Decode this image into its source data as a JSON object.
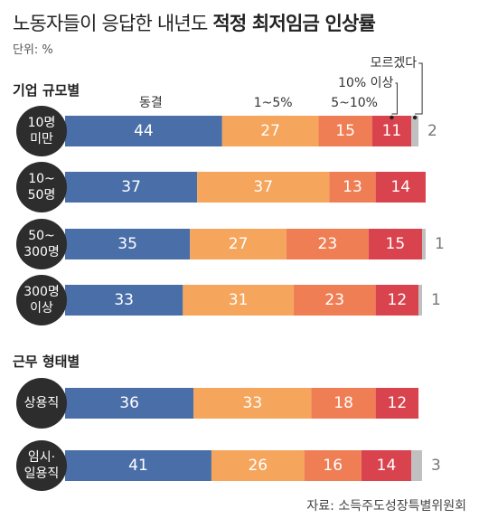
{
  "header": {
    "title_light": "노동자들이 응답한 내년도",
    "title_bold": "적정 최저임금 인상률",
    "unit": "단위: %"
  },
  "source": "자료: 소득주도성장특별위원회",
  "colors": {
    "freeze": "#4a6fa8",
    "one_to_five": "#f5a55c",
    "five_to_ten": "#f07e55",
    "over_ten": "#d9434e",
    "dont_know": "#c0c0c0",
    "pill": "#2d2d2d"
  },
  "chart_data": {
    "type": "bar",
    "stacked": true,
    "orientation": "horizontal",
    "unit": "%",
    "series": [
      {
        "name": "동결",
        "color_key": "freeze"
      },
      {
        "name": "1~5%",
        "color_key": "one_to_five"
      },
      {
        "name": "5~10%",
        "color_key": "five_to_ten"
      },
      {
        "name": "10% 이상",
        "color_key": "over_ten"
      },
      {
        "name": "모르겠다",
        "color_key": "dont_know"
      }
    ],
    "groups": [
      {
        "title": "기업 규모별",
        "rows": [
          {
            "label": [
              "10명",
              "미만"
            ],
            "values": [
              44,
              27,
              15,
              11,
              2
            ]
          },
          {
            "label": [
              "10~",
              "50명"
            ],
            "values": [
              37,
              37,
              13,
              14,
              0
            ]
          },
          {
            "label": [
              "50~",
              "300명"
            ],
            "values": [
              35,
              27,
              23,
              15,
              1
            ]
          },
          {
            "label": [
              "300명",
              "이상"
            ],
            "values": [
              33,
              31,
              23,
              12,
              1
            ]
          }
        ]
      },
      {
        "title": "근무 형태별",
        "rows": [
          {
            "label": [
              "상용직"
            ],
            "values": [
              36,
              33,
              18,
              12,
              0
            ]
          },
          {
            "label": [
              "임시·",
              "일용직"
            ],
            "values": [
              41,
              26,
              16,
              14,
              3
            ]
          }
        ]
      }
    ]
  }
}
